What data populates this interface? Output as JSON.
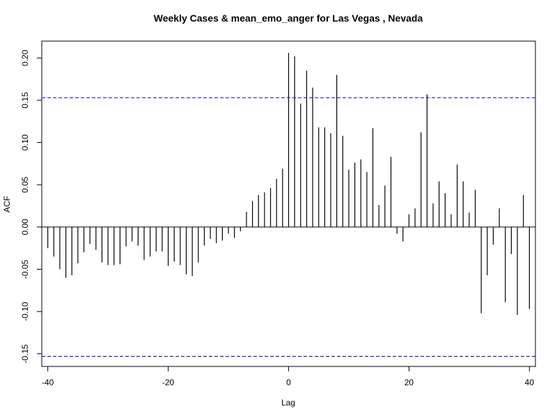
{
  "chart_data": {
    "type": "bar",
    "title": "Weekly Cases & mean_emo_anger for Las Vegas , Nevada",
    "xlabel": "Lag",
    "ylabel": "ACF",
    "xlim": [
      -41,
      41
    ],
    "ylim": [
      -0.165,
      0.22
    ],
    "x_ticks": [
      -40,
      -20,
      0,
      20,
      40
    ],
    "x_tick_labels": [
      "-40",
      "-20",
      "0",
      "20",
      "40"
    ],
    "y_ticks": [
      -0.15,
      -0.1,
      -0.05,
      0.0,
      0.05,
      0.1,
      0.15,
      0.2
    ],
    "y_tick_labels": [
      "-0.15",
      "-0.10",
      "-0.05",
      "0.00",
      "0.05",
      "0.10",
      "0.15",
      "0.20"
    ],
    "confidence_band": 0.153,
    "confidence_color": "#0000cc",
    "bar_color": "#000000",
    "lags": [
      -40,
      -39,
      -38,
      -37,
      -36,
      -35,
      -34,
      -33,
      -32,
      -31,
      -30,
      -29,
      -28,
      -27,
      -26,
      -25,
      -24,
      -23,
      -22,
      -21,
      -20,
      -19,
      -18,
      -17,
      -16,
      -15,
      -14,
      -13,
      -12,
      -11,
      -10,
      -9,
      -8,
      -7,
      -6,
      -5,
      -4,
      -3,
      -2,
      -1,
      0,
      1,
      2,
      3,
      4,
      5,
      6,
      7,
      8,
      9,
      10,
      11,
      12,
      13,
      14,
      15,
      16,
      17,
      18,
      19,
      20,
      21,
      22,
      23,
      24,
      25,
      26,
      27,
      28,
      29,
      30,
      31,
      32,
      33,
      34,
      35,
      36,
      37,
      38,
      39,
      40
    ],
    "values": [
      -0.025,
      -0.035,
      -0.05,
      -0.06,
      -0.057,
      -0.043,
      -0.03,
      -0.02,
      -0.027,
      -0.042,
      -0.045,
      -0.045,
      -0.044,
      -0.023,
      -0.017,
      -0.022,
      -0.039,
      -0.035,
      -0.029,
      -0.029,
      -0.046,
      -0.041,
      -0.045,
      -0.056,
      -0.058,
      -0.042,
      -0.022,
      -0.014,
      -0.019,
      -0.016,
      -0.008,
      -0.013,
      -0.005,
      0.018,
      0.031,
      0.038,
      0.041,
      0.046,
      0.057,
      0.069,
      0.206,
      0.202,
      0.146,
      0.185,
      0.165,
      0.118,
      0.118,
      0.111,
      0.18,
      0.108,
      0.068,
      0.076,
      0.08,
      0.065,
      0.117,
      0.026,
      0.049,
      0.083,
      -0.008,
      -0.017,
      0.015,
      0.022,
      0.112,
      0.157,
      0.028,
      0.054,
      0.04,
      0.015,
      0.074,
      0.054,
      0.017,
      0.044,
      -0.102,
      -0.057,
      -0.021,
      0.022,
      -0.089,
      -0.032,
      -0.104,
      0.038,
      -0.097
    ]
  }
}
